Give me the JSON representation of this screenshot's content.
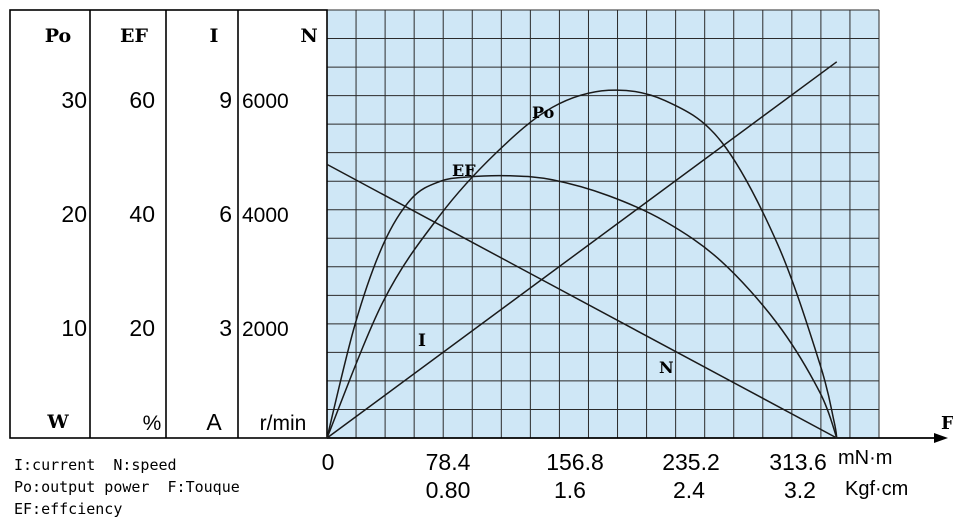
{
  "chart_data": {
    "type": "line",
    "columns": [
      {
        "header": "Po",
        "ticks": [
          "30",
          "20",
          "10"
        ],
        "unit": "W"
      },
      {
        "header": "EF",
        "ticks": [
          "60",
          "40",
          "20"
        ],
        "unit": "%"
      },
      {
        "header": "I",
        "ticks": [
          "9",
          "6",
          "3"
        ],
        "unit": "A"
      },
      {
        "header": "N",
        "ticks": [
          "6000",
          "4000",
          "2000"
        ],
        "unit": "r/min"
      }
    ],
    "x_axis": {
      "name": "F",
      "ticks_mNm": [
        "0",
        "78.4",
        "156.8",
        "235.2",
        "313.6"
      ],
      "unit_mNm": "mN·m",
      "ticks_kgfcm": [
        "0.80",
        "1.6",
        "2.4",
        "3.2"
      ],
      "unit_kgfcm": "Kgf·cm"
    },
    "xlim": [
      0,
      392
    ],
    "ylim_speed": [
      0,
      6000
    ],
    "series": [
      {
        "name": "Po",
        "axis": "Po",
        "x": [
          0,
          40,
          80,
          120,
          160,
          200,
          240,
          280,
          320,
          350,
          360,
          362
        ],
        "y": [
          0,
          12,
          19.5,
          25,
          29,
          30.5,
          29.6,
          26,
          17,
          6.5,
          1.5,
          0
        ]
      },
      {
        "name": "EF",
        "axis": "EF",
        "x": [
          0,
          20,
          40,
          60,
          80,
          100,
          130,
          160,
          200,
          240,
          280,
          320,
          350,
          362
        ],
        "y": [
          0,
          20,
          34,
          42,
          45,
          45.8,
          46,
          45.3,
          42.5,
          38,
          31,
          20,
          8,
          0
        ]
      },
      {
        "name": "I",
        "axis": "I",
        "x": [
          0,
          362
        ],
        "y": [
          0,
          9.9
        ]
      },
      {
        "name": "N",
        "axis": "N",
        "x": [
          0,
          362
        ],
        "y": [
          4800,
          0
        ]
      }
    ],
    "grid": true,
    "legend": [
      "I:current  N:speed",
      "Po:output power  F:Touque",
      "EF:effciency"
    ]
  }
}
